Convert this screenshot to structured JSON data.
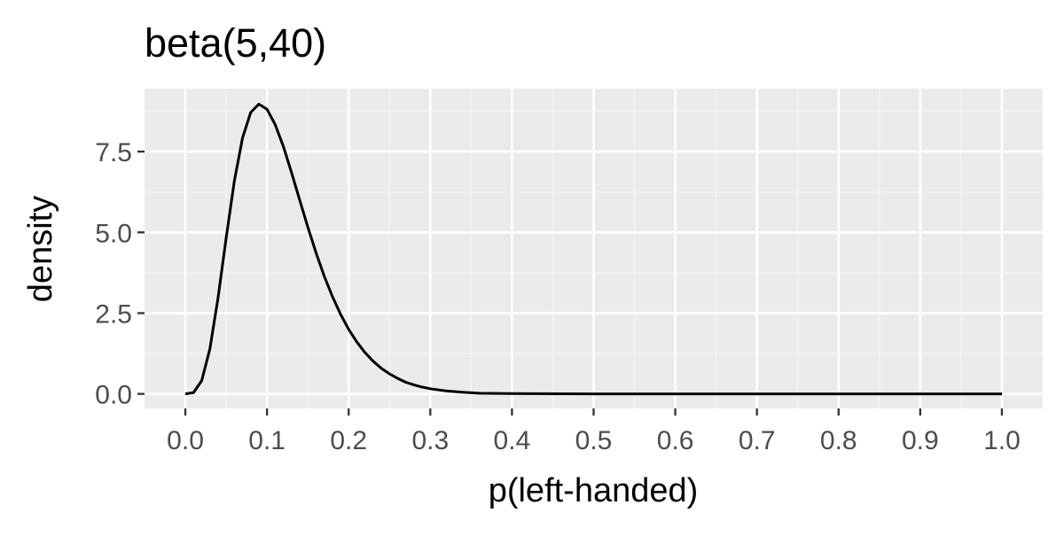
{
  "chart_data": {
    "type": "line",
    "title": "beta(5,40)",
    "xlabel": "p(left-handed)",
    "ylabel": "density",
    "xlim": [
      -0.05,
      1.05
    ],
    "ylim": [
      -0.45,
      9.45
    ],
    "x_ticks": [
      0.0,
      0.1,
      0.2,
      0.3,
      0.4,
      0.5,
      0.6,
      0.7,
      0.8,
      0.9,
      1.0
    ],
    "x_tick_labels": [
      "0.0",
      "0.1",
      "0.2",
      "0.3",
      "0.4",
      "0.5",
      "0.6",
      "0.7",
      "0.8",
      "0.9",
      "1.0"
    ],
    "y_ticks": [
      0.0,
      2.5,
      5.0,
      7.5
    ],
    "y_tick_labels": [
      "0.0",
      "2.5",
      "5.0",
      "7.5"
    ],
    "grid": true,
    "series": [
      {
        "x": [
          0.0,
          0.01,
          0.02,
          0.03,
          0.04,
          0.05,
          0.06,
          0.07,
          0.08,
          0.09,
          0.1,
          0.11,
          0.12,
          0.13,
          0.14,
          0.15,
          0.16,
          0.17,
          0.18,
          0.19,
          0.2,
          0.21,
          0.22,
          0.23,
          0.24,
          0.25,
          0.26,
          0.27,
          0.28,
          0.29,
          0.3,
          0.32,
          0.34,
          0.36,
          0.4,
          0.5,
          0.6,
          0.7,
          0.8,
          0.9,
          1.0
        ],
        "values": [
          0.0,
          0.04,
          0.41,
          1.39,
          2.97,
          4.83,
          6.59,
          7.92,
          8.71,
          8.97,
          8.81,
          8.34,
          7.66,
          6.85,
          6.0,
          5.16,
          4.37,
          3.65,
          3.02,
          2.47,
          2.0,
          1.61,
          1.28,
          1.01,
          0.79,
          0.62,
          0.48,
          0.36,
          0.28,
          0.21,
          0.16,
          0.09,
          0.05,
          0.02,
          0.01,
          0.0,
          0.0,
          0.0,
          0.0,
          0.0,
          0.0
        ],
        "color": "#000000"
      }
    ],
    "colors": {
      "panel_background": "#EBEBEB",
      "grid_major": "#FFFFFF",
      "grid_minor": "#F5F5F5",
      "tick_label": "#4D4D4D",
      "axis_title": "#000000"
    }
  }
}
